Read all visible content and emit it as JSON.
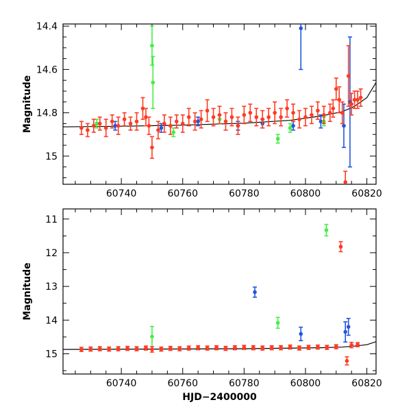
{
  "colors": {
    "red": "#ff3a22",
    "green": "#44ee44",
    "blue": "#2255dd",
    "model": "#000000"
  },
  "chart_data": [
    {
      "type": "scatter",
      "panel": "top",
      "title": "",
      "xlabel": "",
      "ylabel": "Magnitude",
      "xlim": [
        60721,
        60823
      ],
      "ylim": [
        14.39,
        15.13
      ],
      "y_inverted": true,
      "xticks": [
        60740,
        60760,
        60780,
        60800,
        60820
      ],
      "yticks": [
        14.4,
        14.6,
        14.8,
        15
      ],
      "ytick_labels": [
        "14.4",
        "14.6",
        "14.8",
        "15"
      ],
      "model_curve": {
        "x": [
          60721,
          60740,
          60760,
          60780,
          60795,
          60805,
          60812,
          60816,
          60820,
          60823
        ],
        "y": [
          14.865,
          14.862,
          14.857,
          14.848,
          14.835,
          14.815,
          14.795,
          14.77,
          14.73,
          14.66
        ]
      },
      "series": [
        {
          "color": "red",
          "x": [
            60727,
            60729,
            60731,
            60733,
            60735,
            60737,
            60739,
            60741,
            60743,
            60745,
            60747,
            60748,
            60749,
            60750,
            60752,
            60754,
            60756,
            60758,
            60760,
            60762,
            60764,
            60766,
            60768,
            60770,
            60772,
            60774,
            60776,
            60778,
            60780,
            60782,
            60784,
            60786,
            60788,
            60790,
            60792,
            60794,
            60796,
            60798,
            60800,
            60802,
            60804,
            60806,
            60808,
            60809,
            60810,
            60811,
            60812,
            60813,
            60814,
            60815,
            60816,
            60817,
            60818
          ],
          "y": [
            14.87,
            14.88,
            14.86,
            14.85,
            14.87,
            14.84,
            14.86,
            14.83,
            14.85,
            14.84,
            14.78,
            14.82,
            14.86,
            14.96,
            14.88,
            14.85,
            14.86,
            14.84,
            14.85,
            14.82,
            14.84,
            14.83,
            14.79,
            14.82,
            14.81,
            14.84,
            14.82,
            14.86,
            14.81,
            14.8,
            14.82,
            14.83,
            14.82,
            14.8,
            14.82,
            14.78,
            14.8,
            14.83,
            14.82,
            14.81,
            14.79,
            14.81,
            14.8,
            14.78,
            14.69,
            14.74,
            14.8,
            15.12,
            14.63,
            14.76,
            14.74,
            14.74,
            14.73
          ],
          "err": [
            0.03,
            0.03,
            0.03,
            0.03,
            0.04,
            0.03,
            0.04,
            0.03,
            0.03,
            0.04,
            0.05,
            0.04,
            0.04,
            0.05,
            0.04,
            0.04,
            0.04,
            0.03,
            0.04,
            0.04,
            0.04,
            0.04,
            0.05,
            0.04,
            0.04,
            0.04,
            0.04,
            0.04,
            0.04,
            0.04,
            0.04,
            0.04,
            0.04,
            0.05,
            0.04,
            0.04,
            0.04,
            0.04,
            0.04,
            0.04,
            0.04,
            0.04,
            0.04,
            0.04,
            0.05,
            0.06,
            0.05,
            0.05,
            0.14,
            0.05,
            0.04,
            0.04,
            0.04
          ]
        },
        {
          "color": "green",
          "x": [
            60732,
            60750,
            60750.3,
            60757,
            60772,
            60791,
            60795,
            60806
          ],
          "y": [
            14.85,
            14.49,
            14.66,
            14.89,
            14.83,
            14.92,
            14.87,
            14.84
          ],
          "err": [
            0.02,
            0.09,
            0.12,
            0.02,
            0.02,
            0.02,
            0.02,
            0.02
          ]
        },
        {
          "color": "blue",
          "x": [
            60738,
            60753,
            60765,
            60778,
            60786,
            60796,
            60798.5,
            60805,
            60812.5,
            60814.5
          ],
          "y": [
            14.86,
            14.87,
            14.84,
            14.86,
            14.85,
            14.86,
            14.41,
            14.84,
            14.86,
            14.75
          ],
          "err": [
            0.02,
            0.02,
            0.02,
            0.02,
            0.02,
            0.02,
            0.19,
            0.03,
            0.1,
            0.3
          ]
        }
      ]
    },
    {
      "type": "scatter",
      "panel": "bottom",
      "title": "",
      "xlabel": "HJD−2400000",
      "ylabel": "Magnitude",
      "xlim": [
        60721,
        60823
      ],
      "ylim": [
        10.7,
        15.6
      ],
      "y_inverted": true,
      "xticks": [
        60740,
        60760,
        60780,
        60800,
        60820
      ],
      "yticks": [
        11,
        12,
        13,
        14,
        15
      ],
      "ytick_labels": [
        "11",
        "12",
        "13",
        "14",
        "15"
      ],
      "model_curve": {
        "x": [
          60721,
          60780,
          60805,
          60812,
          60816,
          60820,
          60823
        ],
        "y": [
          14.87,
          14.85,
          14.82,
          14.8,
          14.77,
          14.73,
          14.64
        ]
      },
      "series": [
        {
          "color": "red",
          "x": [
            60727,
            60730,
            60733,
            60736,
            60739,
            60742,
            60745,
            60748,
            60750,
            60753,
            60756,
            60759,
            60762,
            60765,
            60768,
            60771,
            60774,
            60777,
            60780,
            60783,
            60786,
            60789,
            60792,
            60795,
            60798,
            60801,
            60804,
            60807,
            60810,
            60811.5,
            60813.5,
            60815,
            60817
          ],
          "y": [
            14.87,
            14.86,
            14.85,
            14.86,
            14.85,
            14.84,
            14.85,
            14.83,
            14.87,
            14.86,
            14.84,
            14.85,
            14.83,
            14.82,
            14.83,
            14.82,
            14.84,
            14.82,
            14.81,
            14.82,
            14.83,
            14.82,
            14.82,
            14.8,
            14.83,
            14.81,
            14.8,
            14.81,
            14.79,
            11.82,
            15.21,
            14.74,
            14.73
          ],
          "err": [
            0.06,
            0.06,
            0.06,
            0.06,
            0.06,
            0.06,
            0.06,
            0.06,
            0.08,
            0.06,
            0.06,
            0.06,
            0.06,
            0.06,
            0.06,
            0.06,
            0.06,
            0.06,
            0.06,
            0.06,
            0.06,
            0.06,
            0.06,
            0.06,
            0.06,
            0.06,
            0.06,
            0.06,
            0.06,
            0.15,
            0.12,
            0.08,
            0.06
          ]
        },
        {
          "color": "green",
          "x": [
            60750,
            60791,
            60806.8
          ],
          "y": [
            14.49,
            14.08,
            11.33
          ],
          "err": [
            0.3,
            0.16,
            0.17
          ]
        },
        {
          "color": "blue",
          "x": [
            60783.5,
            60798.5,
            60813,
            60814
          ],
          "y": [
            13.17,
            14.41,
            14.35,
            14.2
          ],
          "err": [
            0.15,
            0.2,
            0.3,
            0.25
          ]
        }
      ]
    }
  ]
}
